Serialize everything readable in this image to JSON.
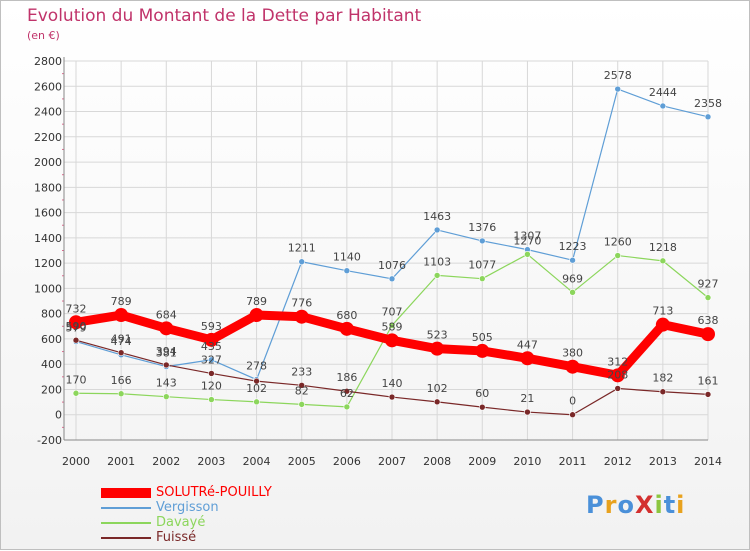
{
  "title": "Evolution du Montant de la Dette par Habitant",
  "subtitle": "(en €)",
  "logo": "ProXiti",
  "chart_data": {
    "type": "line",
    "categories": [
      "2000",
      "2001",
      "2002",
      "2003",
      "2004",
      "2005",
      "2006",
      "2007",
      "2008",
      "2009",
      "2010",
      "2011",
      "2012",
      "2013",
      "2014"
    ],
    "ylim": [
      -200,
      2800
    ],
    "yticks": [
      "-200",
      "0",
      "200",
      "400",
      "600",
      "800",
      "1000",
      "1200",
      "1400",
      "1600",
      "1800",
      "2000",
      "2200",
      "2400",
      "2600",
      "2800"
    ],
    "grid": true,
    "legend_position": "bottom-left",
    "series": [
      {
        "name": "SOLUTRé-POUILLY",
        "color": "#ff0000",
        "emphasis": true,
        "values": [
          732,
          789,
          684,
          593,
          789,
          776,
          680,
          589,
          523,
          505,
          447,
          380,
          312,
          713,
          638
        ],
        "labels": [
          "732",
          "789",
          "684",
          "593",
          "789",
          "776",
          "680",
          "589",
          "523",
          "505",
          "447",
          "380",
          "312",
          "713",
          "638"
        ]
      },
      {
        "name": "Vergisson",
        "color": "#5f9ed6",
        "values": [
          579,
          474,
          381,
          435,
          278,
          1211,
          1140,
          1076,
          1463,
          1376,
          1307,
          1223,
          2578,
          2444,
          2358
        ],
        "labels": [
          "579",
          "474",
          "381",
          "435",
          "278",
          "1211",
          "1140",
          "1076",
          "1463",
          "1376",
          "1307",
          "1223",
          "2578",
          "2444",
          "2358"
        ]
      },
      {
        "name": "Davayé",
        "color": "#8cd65c",
        "values": [
          170,
          166,
          143,
          120,
          102,
          82,
          62,
          707,
          1103,
          1077,
          1270,
          969,
          1260,
          1218,
          927
        ],
        "labels": [
          "170",
          "166",
          "143",
          "120",
          "102",
          "82",
          "62",
          "707",
          "1103",
          "1077",
          "1270",
          "969",
          "1260",
          "1218",
          "927"
        ]
      },
      {
        "name": "Fuissé",
        "color": "#7a2828",
        "values": [
          590,
          491,
          394,
          327,
          266,
          233,
          186,
          140,
          102,
          60,
          21,
          0,
          208,
          182,
          161
        ],
        "labels": [
          "590",
          "491",
          "394",
          "327",
          "",
          "233",
          "186",
          "140",
          "102",
          "60",
          "21",
          "0",
          "208",
          "182",
          "161"
        ]
      }
    ]
  }
}
